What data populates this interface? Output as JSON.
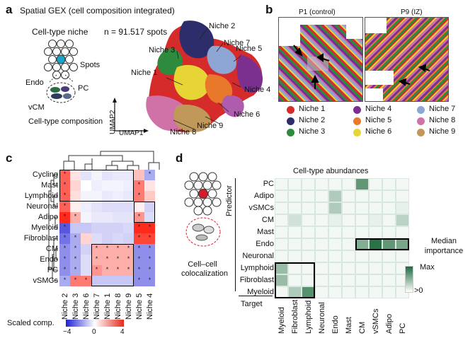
{
  "panel_a": {
    "letter": "a",
    "title": "Spatial GEX (cell composition integrated)",
    "niche_label": "Cell-type niche",
    "n_spots": "n = 91.517 spots",
    "spots_label": "Spots",
    "endo": "Endo",
    "pc": "PC",
    "vcm": "vCM",
    "composition": "Cell-type composition",
    "umap1": "UMAP1",
    "umap2": "UMAP2",
    "niche_labels": [
      "Niche 1",
      "Niche 2",
      "Niche 3",
      "Niche 4",
      "Niche 5",
      "Niche 6",
      "Niche 7",
      "Niche 8",
      "Niche 9"
    ]
  },
  "panel_b": {
    "letter": "b",
    "left_title": "P1 (control)",
    "right_title": "P9 (IZ)",
    "legend": [
      {
        "label": "Niche 1",
        "color": "#d62b2b"
      },
      {
        "label": "Niche 4",
        "color": "#7b2f8e"
      },
      {
        "label": "Niche 7",
        "color": "#8ea6d4"
      },
      {
        "label": "Niche 2",
        "color": "#2e2d6b"
      },
      {
        "label": "Niche 5",
        "color": "#e8792b"
      },
      {
        "label": "Niche 8",
        "color": "#cf72a8"
      },
      {
        "label": "Niche 3",
        "color": "#2e8b3e"
      },
      {
        "label": "Niche 6",
        "color": "#e6d534"
      },
      {
        "label": "Niche 9",
        "color": "#c0985a"
      }
    ]
  },
  "panel_c": {
    "letter": "c",
    "rows": [
      "Cycling",
      "Mast",
      "Lymphoid",
      "Neuronal",
      "Adipo",
      "Myeloid",
      "Fibroblast",
      "CM",
      "Endo",
      "PC",
      "vSMCs"
    ],
    "cols": [
      "Niche 2",
      "Niche 3",
      "Niche 6",
      "Niche 7",
      "Niche 1",
      "Niche 8",
      "Niche 9",
      "Niche 5",
      "Niche 4"
    ],
    "colorbar_label": "Scaled comp.",
    "colorbar_min": "−4",
    "colorbar_mid": "0",
    "colorbar_max": "4",
    "values": [
      [
        3,
        0.5,
        -0.5,
        -0.2,
        -0.5,
        -0.4,
        -0.4,
        1.2,
        -1.5
      ],
      [
        3,
        0.8,
        0,
        -0.3,
        -0.2,
        -0.2,
        -0.3,
        2.5,
        0.5
      ],
      [
        3,
        0.6,
        -0.2,
        -0.2,
        -0.4,
        -0.3,
        -0.4,
        2.5,
        1
      ],
      [
        3,
        0.3,
        -0.3,
        -0.5,
        -0.6,
        -0.6,
        -0.6,
        0.3,
        -0.8
      ],
      [
        4,
        1.5,
        -0.2,
        -0.4,
        -0.4,
        -0.5,
        -0.5,
        2,
        -0.6
      ],
      [
        -3,
        -1,
        -1,
        -0.8,
        -0.8,
        -0.8,
        -0.7,
        4,
        4
      ],
      [
        -2.5,
        -1.5,
        0.8,
        -0.6,
        -0.8,
        -0.7,
        -0.8,
        3.5,
        3.5
      ],
      [
        -2,
        -1.5,
        -0.8,
        1.5,
        1.5,
        1.5,
        1.5,
        -2,
        -2
      ],
      [
        -2,
        -1.5,
        -0.6,
        1.5,
        1.5,
        1.5,
        1.5,
        -2,
        -2
      ],
      [
        -2,
        -1.5,
        -0.6,
        2,
        1.5,
        1.5,
        1.5,
        -2,
        -2
      ],
      [
        -1.5,
        2.5,
        2.5,
        -1,
        -1,
        -1,
        -1,
        -2,
        -2
      ]
    ]
  },
  "panel_d": {
    "letter": "d",
    "colocalization": "Cell–cell colocalization",
    "title": "Cell-type abundances",
    "predictor_label": "Predictor",
    "target_label": "Target",
    "median_label": "Median importance",
    "max_label": "Max",
    "min_label": ">0",
    "rows": [
      "PC",
      "Adipo",
      "vSMCs",
      "CM",
      "Mast",
      "Endo",
      "Neuronal",
      "Lymphoid",
      "Fibroblast",
      "Myeloid"
    ],
    "cols": [
      "Myeloid",
      "Fibroblast",
      "Lymphoid",
      "Neuronal",
      "Endo",
      "Mast",
      "CM",
      "vSMCs",
      "Adipo",
      "PC"
    ],
    "values": [
      [
        0.05,
        0.05,
        0.05,
        0.05,
        0.05,
        0.05,
        0.7,
        0.05,
        0.05,
        0.05
      ],
      [
        0.05,
        0.05,
        0.05,
        0.05,
        0.35,
        0.05,
        0.05,
        0.05,
        0.05,
        0.05
      ],
      [
        0.05,
        0.05,
        0.05,
        0.05,
        0.35,
        0.05,
        0.05,
        0.05,
        0.05,
        0.1
      ],
      [
        0.05,
        0.2,
        0.05,
        0.05,
        0.1,
        0.05,
        0.05,
        0.1,
        0.05,
        0.3
      ],
      [
        0.05,
        0.05,
        0.05,
        0.05,
        0.05,
        0.05,
        0.05,
        0.05,
        0.05,
        0.05
      ],
      [
        0.05,
        0.05,
        0.05,
        0.05,
        0.05,
        0.05,
        0.55,
        0.95,
        0.7,
        0.6
      ],
      [
        0.05,
        0.05,
        0.05,
        0.05,
        0.05,
        0.05,
        0.05,
        0.05,
        0.05,
        0.05
      ],
      [
        0.45,
        0.05,
        0.05,
        0.05,
        0.05,
        0.05,
        0.05,
        0.05,
        0.05,
        0.05
      ],
      [
        0.45,
        0.05,
        0.05,
        0.05,
        0.05,
        0.05,
        0.05,
        0.05,
        0.05,
        0.05
      ],
      [
        0.05,
        0.35,
        0.75,
        0.05,
        0.05,
        0.05,
        0.05,
        0.05,
        0.05,
        0.05
      ]
    ]
  }
}
